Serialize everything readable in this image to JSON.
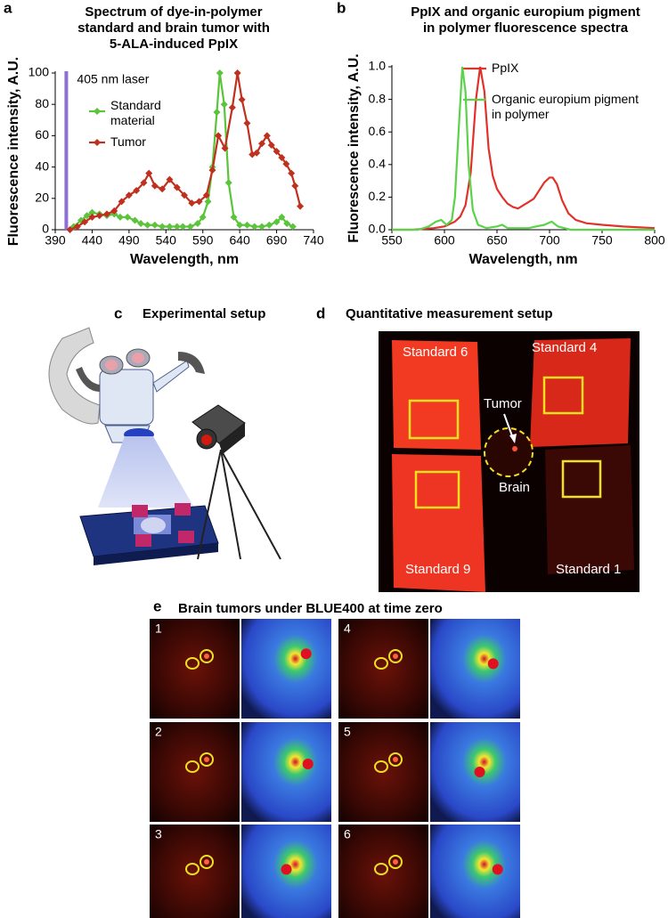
{
  "chart_data": [
    {
      "type": "line",
      "panel_label": "a",
      "title": [
        "Spectrum of dye-in-polymer",
        "standard and brain tumor with",
        "5-ALA-induced PpIX"
      ],
      "x_label": "Wavelength, nm",
      "y_label": "Fluorescence intensity, A.U.",
      "xlim": [
        390,
        740
      ],
      "xticks": [
        390,
        440,
        490,
        540,
        590,
        640,
        690,
        740
      ],
      "ylim": [
        0,
        100
      ],
      "yticks": [
        0,
        20,
        40,
        60,
        80,
        100
      ],
      "grid": false,
      "markers": "diamond",
      "annotations": [
        {
          "text": "405 nm laser",
          "x": 405,
          "color": "#8e6fd3"
        }
      ],
      "series": [
        {
          "name": "Standard material",
          "color": "#5ac43a",
          "x": [
            415,
            425,
            433,
            440,
            450,
            460,
            470,
            478,
            488,
            498,
            506,
            515,
            525,
            535,
            545,
            555,
            563,
            573,
            583,
            590,
            597,
            603,
            609,
            613,
            619,
            625,
            632,
            640,
            650,
            660,
            670,
            680,
            690,
            697,
            704,
            712
          ],
          "values": [
            2,
            6,
            9,
            11,
            10,
            9,
            10,
            8,
            8,
            6,
            4,
            3,
            3,
            2,
            2,
            2,
            2,
            2,
            4,
            8,
            18,
            40,
            75,
            100,
            80,
            30,
            8,
            3,
            3,
            2,
            2,
            3,
            5,
            8,
            4,
            2
          ]
        },
        {
          "name": "Tumor",
          "color": "#c0301e",
          "x": [
            410,
            420,
            430,
            440,
            450,
            460,
            470,
            480,
            490,
            500,
            510,
            517,
            525,
            535,
            545,
            555,
            565,
            575,
            585,
            595,
            603,
            611,
            620,
            630,
            637,
            643,
            650,
            657,
            663,
            670,
            677,
            683,
            690,
            697,
            703,
            710,
            715,
            722
          ],
          "values": [
            0,
            2,
            5,
            8,
            9,
            10,
            12,
            18,
            22,
            25,
            30,
            36,
            28,
            26,
            32,
            27,
            22,
            17,
            18,
            22,
            38,
            60,
            52,
            78,
            100,
            83,
            68,
            48,
            49,
            55,
            60,
            54,
            50,
            46,
            42,
            36,
            28,
            15
          ]
        }
      ]
    },
    {
      "type": "line",
      "panel_label": "b",
      "title": [
        "PpIX and organic europium pigment",
        "in polymer fluorescence spectra"
      ],
      "x_label": "Wavelength, nm",
      "y_label": "Fluorescence intensity, A.U.",
      "xlim": [
        550,
        800
      ],
      "xticks": [
        550,
        600,
        650,
        700,
        750,
        800
      ],
      "ylim": [
        0,
        1
      ],
      "yticks": [
        {
          "value": 0,
          "label": "0.0"
        },
        0.2,
        0.4,
        0.6,
        0.8,
        {
          "value": 1,
          "label": "1.0"
        }
      ],
      "grid": false,
      "markers": "none",
      "series": [
        {
          "name": "PpIX",
          "color": "#e0322a",
          "x": [
            550,
            570,
            590,
            600,
            610,
            615,
            620,
            625,
            630,
            634,
            638,
            642,
            646,
            650,
            655,
            660,
            665,
            670,
            675,
            680,
            685,
            690,
            695,
            700,
            703,
            707,
            712,
            718,
            725,
            735,
            750,
            770,
            800
          ],
          "values": [
            0,
            0,
            0.01,
            0.02,
            0.05,
            0.08,
            0.15,
            0.35,
            0.8,
            1.0,
            0.85,
            0.5,
            0.33,
            0.25,
            0.2,
            0.16,
            0.14,
            0.13,
            0.15,
            0.17,
            0.19,
            0.24,
            0.29,
            0.32,
            0.32,
            0.28,
            0.18,
            0.1,
            0.06,
            0.04,
            0.03,
            0.02,
            0.01
          ]
        },
        {
          "name": "Organic europium pigment in polymer",
          "color": "#5ad34a",
          "x": [
            550,
            575,
            585,
            592,
            597,
            602,
            607,
            610,
            613,
            617,
            620,
            623,
            627,
            632,
            640,
            650,
            655,
            660,
            680,
            695,
            702,
            708,
            720,
            800
          ],
          "values": [
            0,
            0,
            0.02,
            0.05,
            0.06,
            0.03,
            0.06,
            0.2,
            0.55,
            1.0,
            0.85,
            0.4,
            0.12,
            0.03,
            0.01,
            0.02,
            0.03,
            0.01,
            0.01,
            0.03,
            0.05,
            0.02,
            0,
            0
          ]
        }
      ]
    }
  ],
  "panels": {
    "c": {
      "letter": "c",
      "title": "Experimental setup"
    },
    "d": {
      "letter": "d",
      "title": "Quantitative measurement setup",
      "labels": {
        "standard_6": "Standard 6",
        "standard_4": "Standard 4",
        "tumor": "Tumor",
        "brain": "Brain",
        "standard_9": "Standard 9",
        "standard_1": "Standard 1"
      }
    },
    "e": {
      "letter": "e",
      "title": "Brain tumors under BLUE400 at time zero",
      "numbers": [
        "1",
        "2",
        "3",
        "4",
        "5",
        "6"
      ]
    }
  }
}
